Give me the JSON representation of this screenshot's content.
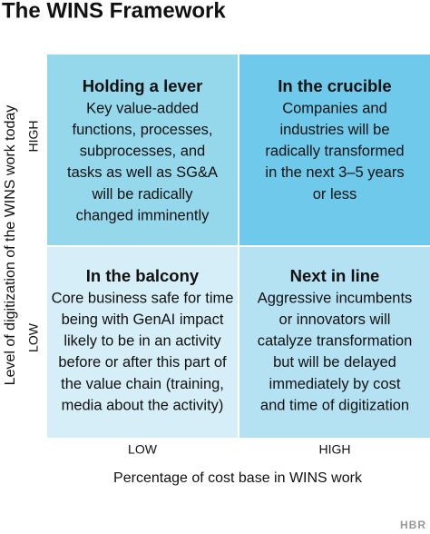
{
  "header": {
    "title": "The WINS Framework"
  },
  "y_axis": {
    "label": "Level of digitization of the WINS work today",
    "high": "HIGH",
    "low": "LOW"
  },
  "x_axis": {
    "label": "Percentage of cost base in WINS work",
    "low": "LOW",
    "high": "HIGH"
  },
  "quadrants": [
    {
      "title": "Holding a lever",
      "lines": [
        "Key value-added",
        "functions, processes,",
        "subprocesses, and",
        "tasks as well as SG&A",
        "will be radically",
        "changed imminently"
      ]
    },
    {
      "title": "In the crucible",
      "lines": [
        "Companies and",
        "industries will be",
        "radically transformed",
        "in the next 3–5 years",
        "or less"
      ]
    },
    {
      "title": "In the balcony",
      "lines": [
        "Core business safe for time",
        "being with GenAI impact",
        "likely to be in an activity",
        "before or after this part of",
        "the value chain (training,",
        "media about the activity)"
      ]
    },
    {
      "title": "Next in line",
      "lines": [
        "Aggressive incumbents",
        "or innovators will",
        "catalyze transformation",
        "but will be delayed",
        "immediately by cost",
        "and time of digitization"
      ]
    }
  ],
  "footer": {
    "logo": "HBR"
  }
}
